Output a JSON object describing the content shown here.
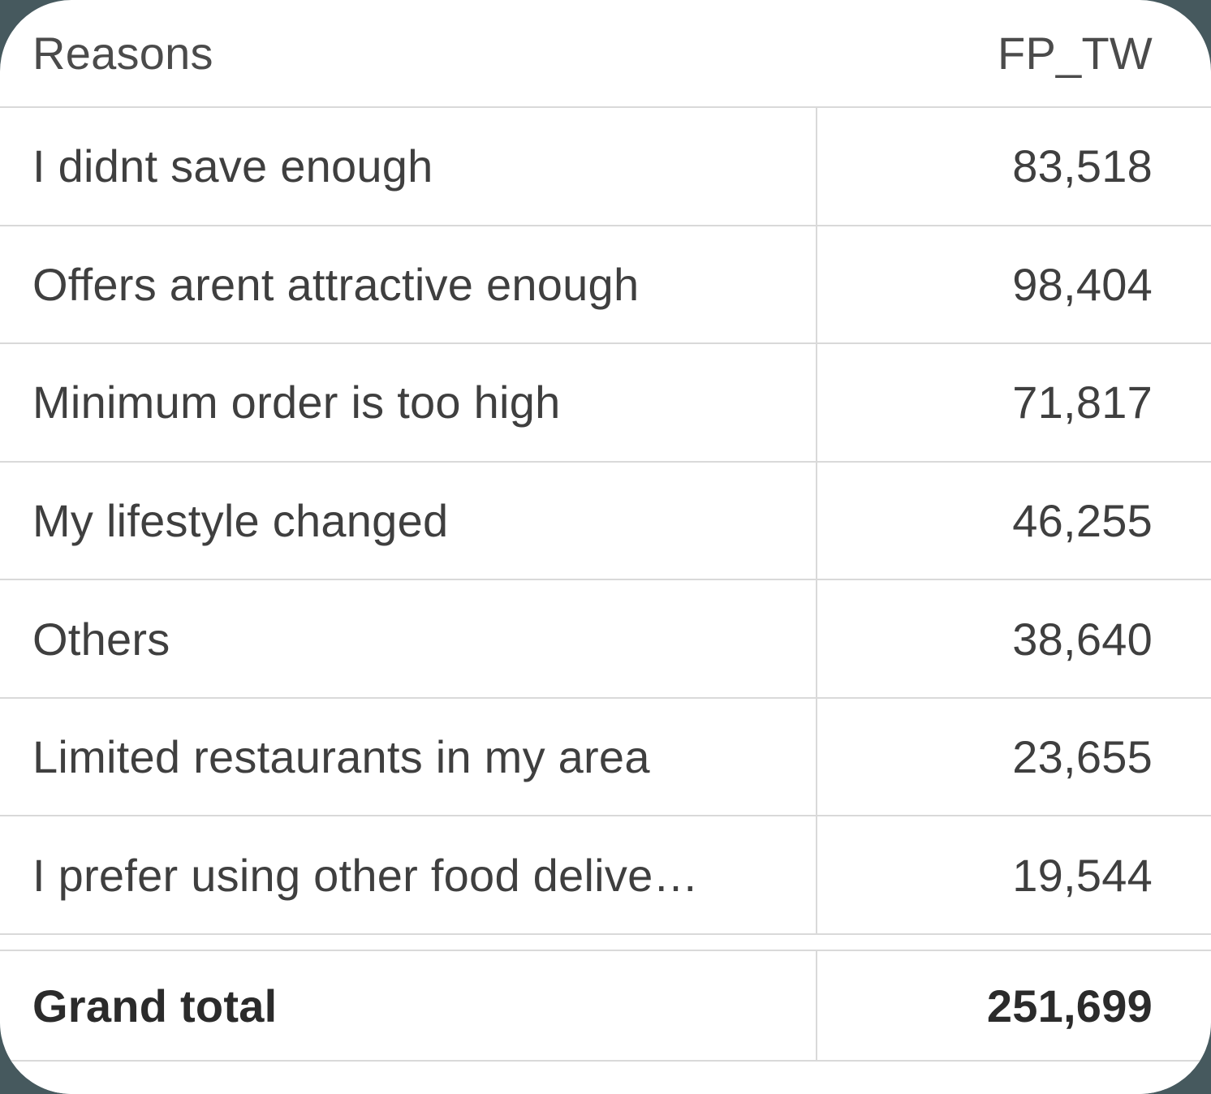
{
  "table": {
    "columns": [
      {
        "label": "Reasons"
      },
      {
        "label": "FP_TW"
      }
    ],
    "rows": [
      {
        "reason": "I didnt save enough",
        "value": "83,518"
      },
      {
        "reason": "Offers arent attractive enough",
        "value": "98,404"
      },
      {
        "reason": "Minimum order is too high",
        "value": "71,817"
      },
      {
        "reason": "My lifestyle changed",
        "value": "46,255"
      },
      {
        "reason": "Others",
        "value": "38,640"
      },
      {
        "reason": "Limited restaurants in my area",
        "value": "23,655"
      },
      {
        "reason": "I prefer using other food delive…",
        "value": "19,544"
      }
    ],
    "footer": {
      "label": "Grand total",
      "value": "251,699"
    }
  },
  "chart_data": {
    "type": "table",
    "columns": [
      "Reasons",
      "FP_TW"
    ],
    "rows": [
      [
        "I didnt save enough",
        83518
      ],
      [
        "Offers arent attractive enough",
        98404
      ],
      [
        "Minimum order is too high",
        71817
      ],
      [
        "My lifestyle changed",
        46255
      ],
      [
        "Others",
        38640
      ],
      [
        "Limited restaurants in my area",
        23655
      ],
      [
        "I prefer using other food delive…",
        19544
      ]
    ],
    "grand_total": [
      "Grand total",
      251699
    ],
    "layout": {
      "value_alignment": "right",
      "summary_row": "bottom",
      "gridlines": "horizontal+column-divider"
    }
  },
  "colors": {
    "page_background": "#46595e",
    "card_background": "#ffffff",
    "border": "#d9d9d9",
    "row_text": "#3f3f3f",
    "header_text": "#4b4b4b",
    "total_text": "#2b2b2b"
  }
}
